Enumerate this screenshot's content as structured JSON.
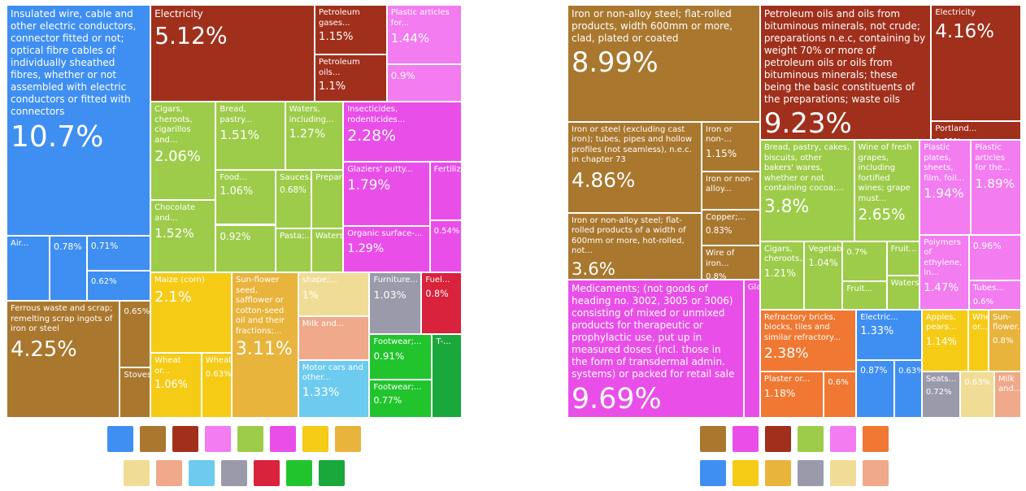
{
  "chart_data": [
    {
      "type": "treemap",
      "groups": [
        {
          "color": "#3f8ff2",
          "items": [
            {
              "name": "Insulated wire, cable and other electric conductors, connector fitted or not; optical fibre cables of individually sheathed fibres, whether or not assembled with electric conductors or fitted with connectors",
              "value": 10.7,
              "value_label": "10.7%"
            },
            {
              "name": "Air...",
              "value": 0.9
            },
            {
              "name": null,
              "value": 0.78,
              "value_label": "0.78%"
            },
            {
              "name": null,
              "value": 0.71,
              "value_label": "0.71%"
            },
            {
              "name": null,
              "value": 0.62,
              "value_label": "0.62%"
            }
          ]
        },
        {
          "color": "#a9772e",
          "items": [
            {
              "name": "Ferrous waste and scrap; remelting scrap ingots of iron or steel",
              "value": 4.25,
              "value_label": "4.25%"
            },
            {
              "name": null,
              "value": 0.65,
              "value_label": "0.65%"
            },
            {
              "name": "Stoves...",
              "value": 0.5
            }
          ]
        },
        {
          "color": "#a0301c",
          "items": [
            {
              "name": "Electricity",
              "value": 5.12,
              "value_label": "5.12%"
            },
            {
              "name": "Petroleum gases...",
              "value": 1.15,
              "value_label": "1.15%"
            },
            {
              "name": "Petroleum oils...",
              "value": 1.1,
              "value_label": "1.1%"
            }
          ]
        },
        {
          "color": "#f27cf0",
          "items": [
            {
              "name": "Plastic articles for...",
              "value": 1.44,
              "value_label": "1.44%"
            },
            {
              "name": null,
              "value": 0.9,
              "value_label": "0.9%"
            }
          ]
        },
        {
          "color": "#9dcc4a",
          "items": [
            {
              "name": "Cigars, cheroots, cigarillos and...",
              "value": 2.06,
              "value_label": "2.06%"
            },
            {
              "name": "Chocolate and...",
              "value": 1.52,
              "value_label": "1.52%"
            },
            {
              "name": "Bread, pastry...",
              "value": 1.51,
              "value_label": "1.51%"
            },
            {
              "name": "Waters, including...",
              "value": 1.27,
              "value_label": "1.27%"
            },
            {
              "name": "Food...",
              "value": 1.06,
              "value_label": "1.06%"
            },
            {
              "name": null,
              "value": 0.92,
              "value_label": "0.92%"
            },
            {
              "name": "Sauces...",
              "value": 0.68,
              "value_label": "0.68%"
            },
            {
              "name": "Prepared...",
              "value": 0.6
            },
            {
              "name": "Pasta;...",
              "value": 0.5
            },
            {
              "name": "Waters...",
              "value": 0.45
            }
          ]
        },
        {
          "color": "#e94fe8",
          "items": [
            {
              "name": "Insecticides, rodenticides...",
              "value": 2.28,
              "value_label": "2.28%"
            },
            {
              "name": "Glaziers' putty...",
              "value": 1.79,
              "value_label": "1.79%"
            },
            {
              "name": "Organic surface-...",
              "value": 1.29,
              "value_label": "1.29%"
            },
            {
              "name": "Fertilizers...",
              "value": 0.6
            },
            {
              "name": null,
              "value": 0.54,
              "value_label": "0.54%"
            }
          ]
        },
        {
          "color": "#f5cb16",
          "items": [
            {
              "name": "Maize (corn)",
              "value": 2.1,
              "value_label": "2.1%"
            },
            {
              "name": "Wheat or...",
              "value": 1.06,
              "value_label": "1.06%"
            },
            {
              "name": "Wheat...",
              "value": 0.63,
              "value_label": "0.63%"
            }
          ]
        },
        {
          "color": "#e8b43c",
          "items": [
            {
              "name": "Sun-flower seed, safflower or cotton-seed oil and their fractions;...",
              "value": 3.11,
              "value_label": "3.11%"
            }
          ]
        },
        {
          "color": "#f0dc94",
          "items": [
            {
              "name": "shape;...",
              "value": 1,
              "value_label": "1%"
            }
          ]
        },
        {
          "color": "#f0a98a",
          "items": [
            {
              "name": "Milk and...",
              "value": 1
            }
          ]
        },
        {
          "color": "#6ccbef",
          "items": [
            {
              "name": "Motor cars and other...",
              "value": 1.33,
              "value_label": "1.33%"
            }
          ]
        },
        {
          "color": "#9a9aab",
          "items": [
            {
              "name": "Furniture...",
              "value": 1.03,
              "value_label": "1.03%"
            }
          ]
        },
        {
          "color": "#d9223c",
          "items": [
            {
              "name": "Fuel...",
              "value": 0.8,
              "value_label": "0.8%"
            }
          ]
        },
        {
          "color": "#22c42e",
          "items": [
            {
              "name": "Footwear;...",
              "value": 0.91,
              "value_label": "0.91%"
            },
            {
              "name": "Footwear;...",
              "value": 0.77,
              "value_label": "0.77%"
            }
          ]
        },
        {
          "color": "#1aa83c",
          "items": [
            {
              "name": "T-...",
              "value": 0.8
            }
          ]
        }
      ]
    },
    {
      "type": "treemap",
      "groups": [
        {
          "color": "#a9772e",
          "items": [
            {
              "name": "Iron or non-alloy steel; flat-rolled products, width 600mm or more, clad, plated or coated",
              "value": 8.99,
              "value_label": "8.99%"
            },
            {
              "name": "Iron or steel (excluding cast iron); tubes, pipes and hollow profiles (not seamless), n.e.c. in chapter 73",
              "value": 4.86,
              "value_label": "4.86%"
            },
            {
              "name": "Iron or non-alloy steel; flat-rolled products of a width of 600mm or more, hot-rolled, not...",
              "value": 3.6,
              "value_label": "3.6%"
            },
            {
              "name": "Iron or non-...",
              "value": 1.15,
              "value_label": "1.15%"
            },
            {
              "name": "Iron or non-alloy...",
              "value": 0.9
            },
            {
              "name": "Copper;...",
              "value": 0.83,
              "value_label": "0.83%"
            },
            {
              "name": "Wire of iron...",
              "value": 0.8,
              "value_label": "0.8%"
            }
          ]
        },
        {
          "color": "#e94fe8",
          "items": [
            {
              "name": "Medicaments; (not goods of heading no. 3002, 3005 or 3006) consisting of mixed or unmixed products for therapeutic or prophylactic use, put up in measured doses (incl. those in the form of transdermal admin. systems) or packed for retail sale",
              "value": 9.69,
              "value_label": "9.69%"
            },
            {
              "name": "Glaziers'...",
              "value": 0.9
            }
          ]
        },
        {
          "color": "#a0301c",
          "items": [
            {
              "name": "Petroleum oils and oils from bituminous minerals, not crude; preparations n.e.c, containing by weight 70% or more of petroleum oils or oils from bituminous minerals; these being the basic constituents of the preparations; waste oils",
              "value": 9.23,
              "value_label": "9.23%"
            },
            {
              "name": "Electricity",
              "value": 4.16,
              "value_label": "4.16%"
            },
            {
              "name": "Portland...",
              "value": 0.69,
              "value_label": "0.69%"
            }
          ]
        },
        {
          "color": "#9dcc4a",
          "items": [
            {
              "name": "Bread, pastry, cakes, biscuits, other bakers' wares, whether or not containing cocoa;...",
              "value": 3.8,
              "value_label": "3.8%"
            },
            {
              "name": "Wine of fresh grapes, including fortified wines; grape must...",
              "value": 2.65,
              "value_label": "2.65%"
            },
            {
              "name": "Cigars, cheroots...",
              "value": 1.21,
              "value_label": "1.21%"
            },
            {
              "name": "Vegetables...",
              "value": 1.04,
              "value_label": "1.04%"
            },
            {
              "name": null,
              "value": 0.7,
              "value_label": "0.7%"
            },
            {
              "name": "Fruit...",
              "value": 0.5
            },
            {
              "name": "Fruit...",
              "value": 0.45
            },
            {
              "name": "Waters...",
              "value": 0.45
            }
          ]
        },
        {
          "color": "#f27cf0",
          "items": [
            {
              "name": "Plastic plates, sheets, film, foil...",
              "value": 1.94,
              "value_label": "1.94%"
            },
            {
              "name": "Plastic articles for the...",
              "value": 1.89,
              "value_label": "1.89%"
            },
            {
              "name": "Polymers of ethylene, in...",
              "value": 1.47,
              "value_label": "1.47%"
            },
            {
              "name": null,
              "value": 0.96,
              "value_label": "0.96%"
            },
            {
              "name": "Tubes...",
              "value": 0.6,
              "value_label": "0.6%"
            }
          ]
        },
        {
          "color": "#f07832",
          "items": [
            {
              "name": "Refractory bricks, blocks, tiles and similar refractory...",
              "value": 2.38,
              "value_label": "2.38%"
            },
            {
              "name": "Plaster or...",
              "value": 1.18,
              "value_label": "1.18%"
            },
            {
              "name": null,
              "value": 0.6,
              "value_label": "0.6%"
            }
          ]
        },
        {
          "color": "#3f8ff2",
          "items": [
            {
              "name": "Electric...",
              "value": 1.33,
              "value_label": "1.33%"
            },
            {
              "name": null,
              "value": 0.87,
              "value_label": "0.87%"
            },
            {
              "name": null,
              "value": 0.63,
              "value_label": "0.63%"
            }
          ]
        },
        {
          "color": "#f5cb16",
          "items": [
            {
              "name": "Apples, pears...",
              "value": 1.14,
              "value_label": "1.14%"
            },
            {
              "name": "Wheat or...",
              "value": 0.5
            }
          ]
        },
        {
          "color": "#e8b43c",
          "items": [
            {
              "name": "Sun-flower...",
              "value": 0.8,
              "value_label": "0.8%"
            }
          ]
        },
        {
          "color": "#9a9aab",
          "items": [
            {
              "name": "Seats...",
              "value": 0.72,
              "value_label": "0.72%"
            }
          ]
        },
        {
          "color": "#f0dc94",
          "items": [
            {
              "name": null,
              "value": 0.63,
              "value_label": "0.63%"
            }
          ]
        },
        {
          "color": "#f0a98a",
          "items": [
            {
              "name": "Milk and...",
              "value": 0.5
            }
          ]
        }
      ]
    }
  ]
}
